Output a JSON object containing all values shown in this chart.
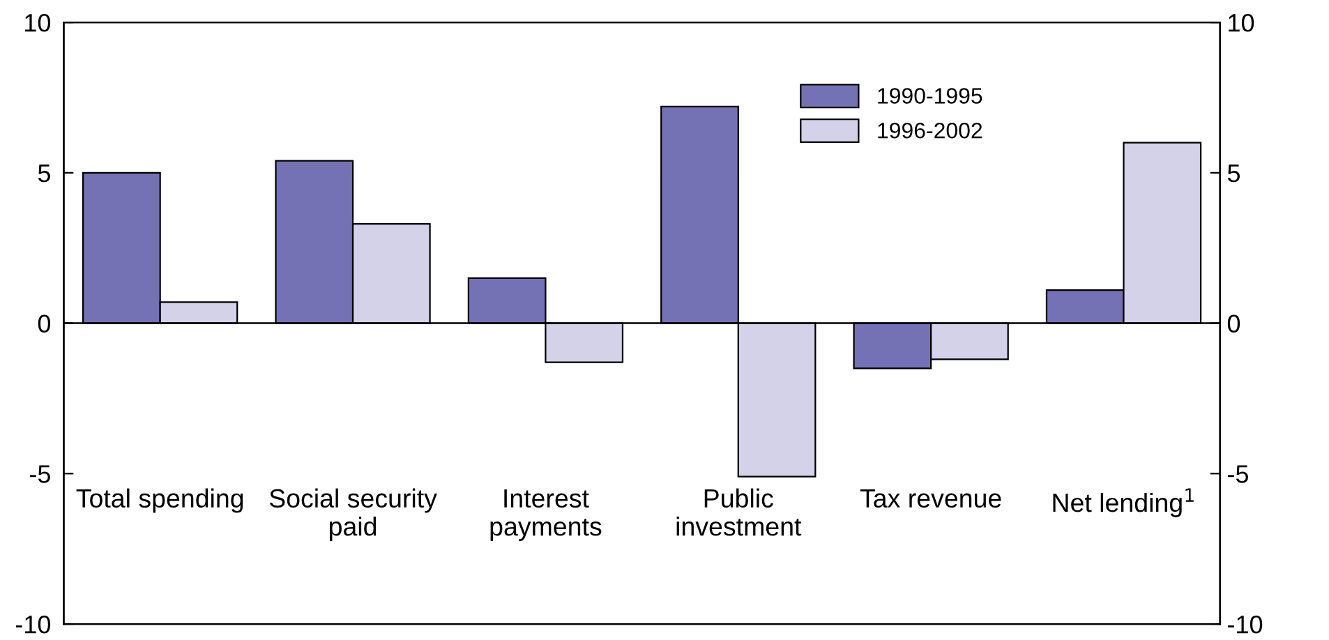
{
  "chart_data": {
    "type": "bar",
    "categories": [
      "Total spending",
      "Social security\npaid",
      "Interest\npayments",
      "Public\ninvestment",
      "Tax revenue",
      "Net lending$^{1}$"
    ],
    "series": [
      {
        "name": "1990-1995",
        "color": "#7471b5",
        "values": [
          5.0,
          5.4,
          1.5,
          7.2,
          -1.5,
          1.1
        ]
      },
      {
        "name": "1996-2002",
        "color": "#d3d2e9",
        "values": [
          0.7,
          3.3,
          -1.3,
          -5.1,
          -1.2,
          6.0
        ]
      }
    ],
    "ylim": [
      -10,
      10
    ],
    "yticks": [
      -10,
      -5,
      0,
      5,
      10
    ],
    "y2lim": [
      -10,
      10
    ],
    "y2ticks": [
      -10,
      -5,
      0,
      5,
      10
    ],
    "ref_lines": [
      {
        "axis": "y",
        "value": 0,
        "color": "#000000"
      }
    ],
    "grid": false,
    "legend": "top right"
  }
}
